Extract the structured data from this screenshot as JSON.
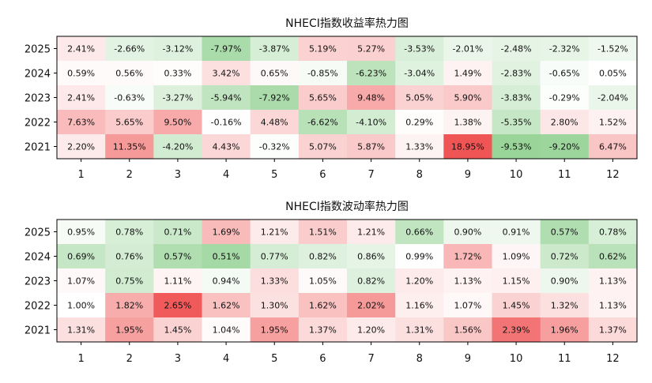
{
  "chart_data": [
    {
      "type": "heatmap",
      "title": "NHECI指数收益率热力图",
      "x_categories": [
        "1",
        "2",
        "3",
        "4",
        "5",
        "6",
        "7",
        "8",
        "9",
        "10",
        "11",
        "12"
      ],
      "y_categories": [
        "2025",
        "2024",
        "2023",
        "2022",
        "2021"
      ],
      "labels": [
        [
          "2.41%",
          "-2.66%",
          "-3.12%",
          "-7.97%",
          "-3.87%",
          "5.19%",
          "5.27%",
          "-3.53%",
          "-2.01%",
          "-2.48%",
          "-2.32%",
          "-1.52%"
        ],
        [
          "0.59%",
          "0.56%",
          "0.33%",
          "3.42%",
          "0.65%",
          "-0.85%",
          "-6.23%",
          "-3.04%",
          "1.49%",
          "-2.83%",
          "-0.65%",
          "0.05%"
        ],
        [
          "2.41%",
          "-0.63%",
          "-3.27%",
          "-5.94%",
          "-7.92%",
          "5.65%",
          "9.48%",
          "5.05%",
          "5.90%",
          "-3.83%",
          "-0.29%",
          "-2.04%"
        ],
        [
          "7.63%",
          "5.65%",
          "9.50%",
          "-0.16%",
          "4.48%",
          "-6.62%",
          "-4.10%",
          "0.29%",
          "1.38%",
          "-5.35%",
          "2.80%",
          "1.52%"
        ],
        [
          "2.20%",
          "11.35%",
          "-4.20%",
          "4.43%",
          "-0.32%",
          "5.07%",
          "5.87%",
          "1.33%",
          "18.95%",
          "-9.53%",
          "-9.20%",
          "6.47%"
        ]
      ],
      "values": [
        [
          2.41,
          -2.66,
          -3.12,
          -7.97,
          -3.87,
          5.19,
          5.27,
          -3.53,
          -2.01,
          -2.48,
          -2.32,
          -1.52
        ],
        [
          0.59,
          0.56,
          0.33,
          3.42,
          0.65,
          -0.85,
          -6.23,
          -3.04,
          1.49,
          -2.83,
          -0.65,
          0.05
        ],
        [
          2.41,
          -0.63,
          -3.27,
          -5.94,
          -7.92,
          5.65,
          9.48,
          5.05,
          5.9,
          -3.83,
          -0.29,
          -2.04
        ],
        [
          7.63,
          5.65,
          9.5,
          -0.16,
          4.48,
          -6.62,
          -4.1,
          0.29,
          1.38,
          -5.35,
          2.8,
          1.52
        ],
        [
          2.2,
          11.35,
          -4.2,
          4.43,
          -0.32,
          5.07,
          5.87,
          1.33,
          18.95,
          -9.53,
          -9.2,
          6.47
        ]
      ],
      "color_range": [
        -12,
        19
      ],
      "colors": {
        "low": "#7fc97f",
        "mid": "#ffffff",
        "high": "#f05555"
      }
    },
    {
      "type": "heatmap",
      "title": "NHECI指数波动率热力图",
      "x_categories": [
        "1",
        "2",
        "3",
        "4",
        "5",
        "6",
        "7",
        "8",
        "9",
        "10",
        "11",
        "12"
      ],
      "y_categories": [
        "2025",
        "2024",
        "2023",
        "2022",
        "2021"
      ],
      "labels": [
        [
          "0.95%",
          "0.78%",
          "0.71%",
          "1.69%",
          "1.21%",
          "1.51%",
          "1.21%",
          "0.66%",
          "0.90%",
          "0.91%",
          "0.57%",
          "0.78%"
        ],
        [
          "0.69%",
          "0.76%",
          "0.57%",
          "0.51%",
          "0.77%",
          "0.82%",
          "0.86%",
          "0.99%",
          "1.72%",
          "1.09%",
          "0.72%",
          "0.62%"
        ],
        [
          "1.07%",
          "0.75%",
          "1.11%",
          "0.94%",
          "1.33%",
          "1.05%",
          "0.82%",
          "1.20%",
          "1.13%",
          "1.15%",
          "0.90%",
          "1.13%"
        ],
        [
          "1.00%",
          "1.82%",
          "2.65%",
          "1.62%",
          "1.30%",
          "1.62%",
          "2.02%",
          "1.16%",
          "1.07%",
          "1.45%",
          "1.32%",
          "1.13%"
        ],
        [
          "1.31%",
          "1.95%",
          "1.45%",
          "1.04%",
          "1.95%",
          "1.37%",
          "1.20%",
          "1.31%",
          "1.56%",
          "2.39%",
          "1.96%",
          "1.37%"
        ]
      ],
      "values": [
        [
          0.95,
          0.78,
          0.71,
          1.69,
          1.21,
          1.51,
          1.21,
          0.66,
          0.9,
          0.91,
          0.57,
          0.78
        ],
        [
          0.69,
          0.76,
          0.57,
          0.51,
          0.77,
          0.82,
          0.86,
          0.99,
          1.72,
          1.09,
          0.72,
          0.62
        ],
        [
          1.07,
          0.75,
          1.11,
          0.94,
          1.33,
          1.05,
          0.82,
          1.2,
          1.13,
          1.15,
          0.9,
          1.13
        ],
        [
          1.0,
          1.82,
          2.65,
          1.62,
          1.3,
          1.62,
          2.02,
          1.16,
          1.07,
          1.45,
          1.32,
          1.13
        ],
        [
          1.31,
          1.95,
          1.45,
          1.04,
          1.95,
          1.37,
          1.2,
          1.31,
          1.56,
          2.39,
          1.96,
          1.37
        ]
      ],
      "color_range": [
        0.3,
        2.7
      ],
      "color_mid": 1.0,
      "colors": {
        "low": "#7fc97f",
        "mid": "#ffffff",
        "high": "#f05555"
      }
    }
  ]
}
